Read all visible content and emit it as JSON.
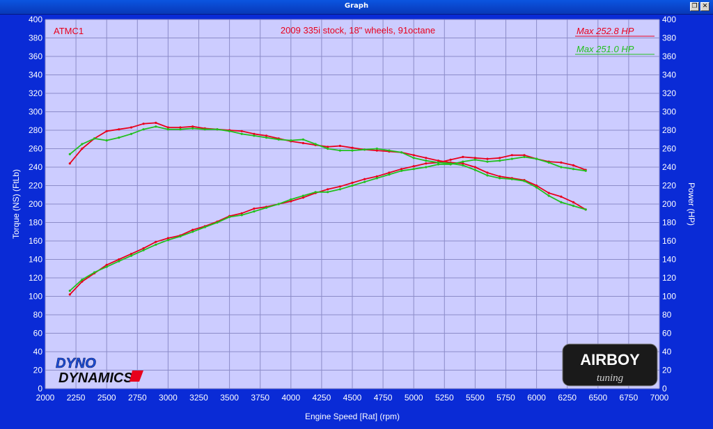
{
  "window": {
    "title": "Graph",
    "restore_glyph": "❐",
    "close_glyph": "✕"
  },
  "chart_data": {
    "type": "line",
    "run_label": "ATMC1",
    "title": "2009 335i stock,  18\" wheels, 91octane",
    "xlabel": "Engine Speed [Rat] (rpm)",
    "ylabel_left": "Torque (NS) (FtLb)",
    "ylabel_right": "Power (HP)",
    "xlim": [
      2000,
      7000
    ],
    "ylim": [
      0,
      400
    ],
    "x_ticks": [
      2000,
      2250,
      2500,
      2750,
      3000,
      3250,
      3500,
      3750,
      4000,
      4250,
      4500,
      4750,
      5000,
      5250,
      5500,
      5750,
      6000,
      6250,
      6500,
      6750,
      7000
    ],
    "y_ticks": [
      0,
      20,
      40,
      60,
      80,
      100,
      120,
      140,
      160,
      180,
      200,
      220,
      240,
      260,
      280,
      300,
      320,
      340,
      360,
      380,
      400
    ],
    "grid": true,
    "legend": [
      {
        "label": "Max 252.8 HP",
        "color": "#e8001c"
      },
      {
        "label": "Max 251.0 HP",
        "color": "#22c01e"
      }
    ],
    "logos": {
      "dyno_line1": "DYNO",
      "dyno_line2": "DYNAMICS",
      "airboy_line1": "AIRBOY",
      "airboy_line2": "tuning"
    },
    "series": [
      {
        "name": "Torque",
        "color": "#e8001c",
        "x": [
          2200,
          2300,
          2400,
          2500,
          2600,
          2700,
          2800,
          2900,
          3000,
          3100,
          3200,
          3300,
          3400,
          3500,
          3600,
          3700,
          3800,
          3900,
          4000,
          4100,
          4200,
          4300,
          4400,
          4500,
          4600,
          4700,
          4800,
          4900,
          5000,
          5100,
          5200,
          5300,
          5400,
          5500,
          5600,
          5700,
          5800,
          5900,
          6000,
          6100,
          6200,
          6300,
          6400
        ],
        "y": [
          244,
          260,
          271,
          279,
          281,
          283,
          287,
          288,
          283,
          283,
          284,
          282,
          281,
          280,
          279,
          276,
          274,
          271,
          268,
          266,
          264,
          262,
          263,
          261,
          259,
          258,
          257,
          256,
          253,
          250,
          247,
          245,
          244,
          240,
          234,
          230,
          228,
          226,
          220,
          212,
          208,
          202,
          194
        ]
      },
      {
        "name": "Power",
        "color": "#e8001c",
        "x": [
          2200,
          2300,
          2400,
          2500,
          2600,
          2700,
          2800,
          2900,
          3000,
          3100,
          3200,
          3300,
          3400,
          3500,
          3600,
          3700,
          3800,
          3900,
          4000,
          4100,
          4200,
          4300,
          4400,
          4500,
          4600,
          4700,
          4800,
          4900,
          5000,
          5100,
          5200,
          5300,
          5400,
          5500,
          5600,
          5700,
          5800,
          5900,
          6000,
          6100,
          6200,
          6300,
          6400
        ],
        "y": [
          102,
          116,
          125,
          134,
          140,
          146,
          152,
          159,
          163,
          166,
          172,
          176,
          181,
          187,
          190,
          195,
          197,
          200,
          203,
          207,
          212,
          216,
          219,
          223,
          227,
          230,
          234,
          238,
          241,
          244,
          245,
          248,
          251,
          250,
          249,
          250,
          253,
          253,
          249,
          246,
          245,
          242,
          237
        ]
      },
      {
        "name": "Torque",
        "color": "#22c01e",
        "x": [
          2200,
          2300,
          2400,
          2500,
          2600,
          2700,
          2800,
          2900,
          3000,
          3100,
          3200,
          3300,
          3400,
          3500,
          3600,
          3700,
          3800,
          3900,
          4000,
          4100,
          4200,
          4300,
          4400,
          4500,
          4600,
          4700,
          4800,
          4900,
          5000,
          5100,
          5200,
          5300,
          5400,
          5500,
          5600,
          5700,
          5800,
          5900,
          6000,
          6100,
          6200,
          6300,
          6400
        ],
        "y": [
          254,
          265,
          271,
          269,
          272,
          276,
          281,
          284,
          281,
          281,
          282,
          281,
          281,
          279,
          276,
          274,
          272,
          270,
          269,
          270,
          265,
          260,
          258,
          258,
          259,
          260,
          258,
          256,
          250,
          247,
          245,
          244,
          242,
          237,
          231,
          228,
          227,
          225,
          218,
          209,
          202,
          198,
          194
        ]
      },
      {
        "name": "Power",
        "color": "#22c01e",
        "x": [
          2200,
          2300,
          2400,
          2500,
          2600,
          2700,
          2800,
          2900,
          3000,
          3100,
          3200,
          3300,
          3400,
          3500,
          3600,
          3700,
          3800,
          3900,
          4000,
          4100,
          4200,
          4300,
          4400,
          4500,
          4600,
          4700,
          4800,
          4900,
          5000,
          5100,
          5200,
          5300,
          5400,
          5500,
          5600,
          5700,
          5800,
          5900,
          6000,
          6100,
          6200,
          6300,
          6400
        ],
        "y": [
          106,
          118,
          126,
          132,
          138,
          144,
          150,
          156,
          161,
          165,
          170,
          175,
          180,
          186,
          188,
          192,
          196,
          200,
          205,
          209,
          213,
          213,
          216,
          220,
          224,
          228,
          232,
          236,
          238,
          240,
          243,
          243,
          246,
          248,
          246,
          247,
          249,
          251,
          249,
          245,
          240,
          238,
          236
        ]
      }
    ]
  }
}
